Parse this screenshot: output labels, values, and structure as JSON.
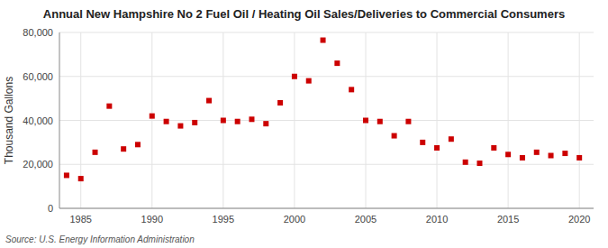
{
  "chart_data": {
    "type": "scatter",
    "title": "Annual New Hampshire No 2 Fuel Oil / Heating Oil Sales/Deliveries to Commercial Consumers",
    "ylabel": "Thousand Gallons",
    "source": "Source: U.S. Energy Information Administration",
    "x": [
      1984,
      1985,
      1986,
      1987,
      1988,
      1989,
      1990,
      1991,
      1992,
      1993,
      1994,
      1995,
      1996,
      1997,
      1998,
      1999,
      2000,
      2001,
      2002,
      2003,
      2004,
      2005,
      2006,
      2007,
      2008,
      2009,
      2010,
      2011,
      2012,
      2013,
      2014,
      2015,
      2016,
      2017,
      2018,
      2019,
      2020
    ],
    "values": [
      15000,
      13500,
      25500,
      46500,
      27000,
      29000,
      42000,
      39500,
      37500,
      39000,
      49000,
      40000,
      39500,
      40500,
      38500,
      48000,
      60000,
      58000,
      76500,
      66000,
      54000,
      40000,
      39500,
      33000,
      39500,
      30000,
      27500,
      31500,
      21000,
      20500,
      27500,
      24500,
      23000,
      25500,
      24000,
      25000,
      23000
    ],
    "color": "#cc0000",
    "marker": "square",
    "xlim": [
      1983.5,
      2021
    ],
    "ylim": [
      0,
      80000
    ],
    "xticks": [
      1985,
      1990,
      1995,
      2000,
      2005,
      2010,
      2015,
      2020
    ],
    "yticks": [
      0,
      {
        "value": 20000,
        "label": "20,000"
      },
      {
        "value": 40000,
        "label": "40,000"
      },
      {
        "value": 60000,
        "label": "60,000"
      },
      {
        "value": 80000,
        "label": "80,000"
      }
    ],
    "grid": true
  }
}
